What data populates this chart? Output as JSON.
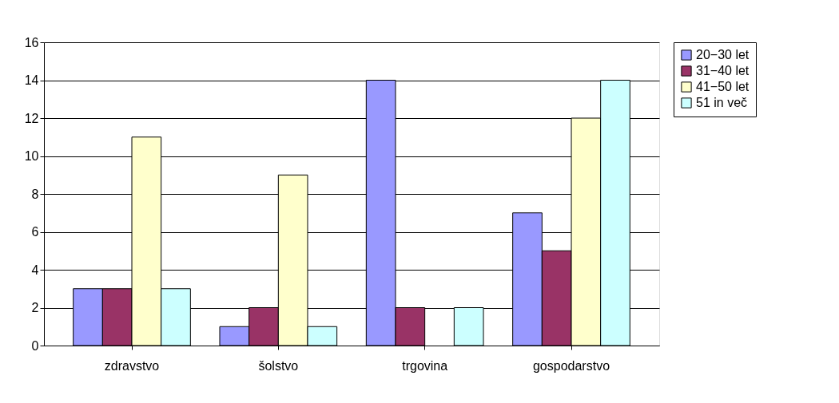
{
  "chart_data": {
    "type": "bar",
    "categories": [
      "zdravstvo",
      "šolstvo",
      "trgovina",
      "gospodarstvo"
    ],
    "series": [
      {
        "name": "20−30 let",
        "color": "#9999ff",
        "values": [
          3,
          1,
          14,
          7
        ]
      },
      {
        "name": "31−40 let",
        "color": "#993366",
        "values": [
          3,
          2,
          2,
          5
        ]
      },
      {
        "name": "41−50 let",
        "color": "#ffffcc",
        "values": [
          11,
          9,
          null,
          12
        ]
      },
      {
        "name": "51 in več",
        "color": "#ccffff",
        "values": [
          3,
          1,
          2,
          14
        ]
      }
    ],
    "ylim": [
      0,
      16
    ],
    "yticks": [
      0,
      2,
      4,
      6,
      8,
      10,
      12,
      14,
      16
    ],
    "grid": "y",
    "legend": "right"
  }
}
